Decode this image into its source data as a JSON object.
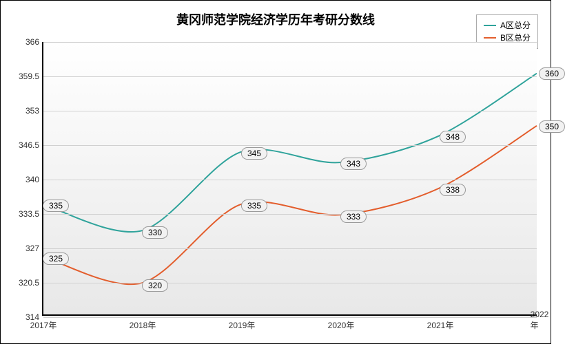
{
  "title": {
    "text": "黄冈师范学院经济学历年考研分数线",
    "fontsize": 18,
    "color": "#000000"
  },
  "legend": {
    "items": [
      {
        "label": "A区总分",
        "color": "#2fa39b"
      },
      {
        "label": "B区总分",
        "color": "#e35d2c"
      }
    ]
  },
  "x": {
    "categories": [
      "2017年",
      "2018年",
      "2019年",
      "2020年",
      "2021年",
      "2022年"
    ],
    "fontsize": 12
  },
  "y": {
    "ticks": [
      314,
      320.5,
      327,
      333.5,
      340,
      346.5,
      353,
      359.5,
      366
    ],
    "min": 314,
    "max": 366,
    "fontsize": 12,
    "grid_color": "#d0d0d0"
  },
  "series": [
    {
      "name": "A区总分",
      "color": "#2fa39b",
      "values": [
        335,
        330,
        345,
        343,
        348,
        360
      ],
      "line_width": 2
    },
    {
      "name": "B区总分",
      "color": "#e35d2c",
      "values": [
        325,
        320,
        335,
        333,
        338,
        350
      ],
      "line_width": 2
    }
  ],
  "background": {
    "top": "#ffffff",
    "bottom": "#e8e8e8"
  },
  "label_style": {
    "bg": "#f2f2f2",
    "border": "#999999",
    "radius": 9,
    "fontsize": 12
  }
}
